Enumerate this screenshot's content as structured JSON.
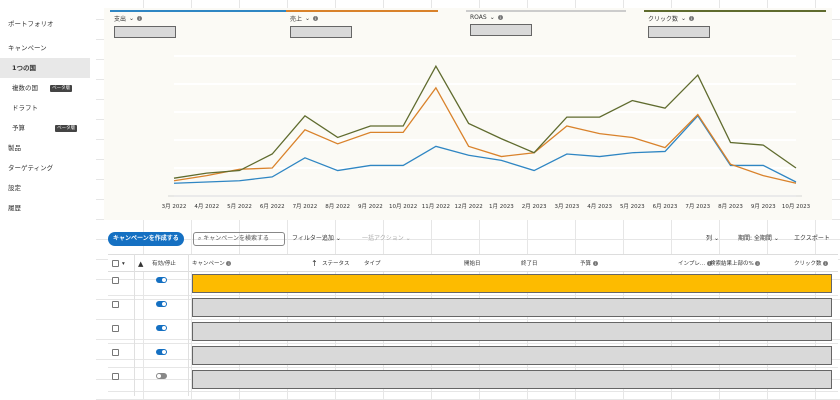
{
  "sidebar": {
    "portfolio": "ポートフォリオ",
    "campaigns": "キャンペーン",
    "items": [
      {
        "label": "1つの国"
      },
      {
        "label": "複数の国",
        "badge": "ベータ版"
      },
      {
        "label": "ドラフト"
      },
      {
        "label": "予算",
        "badge": "ベータ版"
      }
    ],
    "products": "製品",
    "targeting": "ターゲティング",
    "settings": "設定",
    "history": "履歴"
  },
  "metrics": [
    {
      "label": "支出",
      "color": "#2f86c3"
    },
    {
      "label": "売上",
      "color": "#d9822b"
    },
    {
      "label": "ROAS",
      "color": "#cccccc"
    },
    {
      "label": "クリック数",
      "color": "#5f6b2e"
    }
  ],
  "chart_data": {
    "type": "line",
    "categories": [
      "3月 2022",
      "4月 2022",
      "5月 2022",
      "6月 2022",
      "7月 2022",
      "8月 2022",
      "9月 2022",
      "10月 2022",
      "11月 2022",
      "12月 2022",
      "1月 2023",
      "2月 2023",
      "3月 2023",
      "4月 2023",
      "5月 2023",
      "6月 2023",
      "7月 2023",
      "8月 2023",
      "9月 2023",
      "10月 2023"
    ],
    "series": [
      {
        "name": "支出",
        "color": "#2f86c3",
        "values": [
          10,
          11,
          12,
          15,
          30,
          20,
          24,
          24,
          39,
          32,
          28,
          20,
          33,
          31,
          34,
          35,
          63,
          24,
          24,
          11
        ]
      },
      {
        "name": "売上",
        "color": "#d9822b",
        "values": [
          12,
          16,
          21,
          22,
          52,
          41,
          50,
          50,
          85,
          39,
          31,
          34,
          55,
          49,
          46,
          38,
          64,
          25,
          16,
          10
        ]
      },
      {
        "name": "クリック数",
        "color": "#5f6b2e",
        "values": [
          14,
          18,
          20,
          33,
          63,
          46,
          55,
          55,
          102,
          57,
          45,
          34,
          62,
          62,
          75,
          69,
          95,
          42,
          40,
          22
        ]
      }
    ],
    "ylim": [
      0,
      110
    ],
    "grid": true
  },
  "toolbar": {
    "create_label": "キャンペーンを作成する",
    "search_placeholder": "キャンペーンを検索する",
    "filter_label": "フィルター追加",
    "bulk_label": "一括アクション",
    "columns_label": "列",
    "period_label": "期間: 全期間",
    "export_label": "エクスポート"
  },
  "table": {
    "headers": {
      "active": "有効/停止",
      "campaign": "キャンペーン",
      "status": "ステータス",
      "type": "タイプ",
      "start": "開始日",
      "end": "終了日",
      "budget": "予算",
      "impressions": "インプレ...",
      "top_share": "検索結果上部の%",
      "clicks": "クリック数"
    },
    "rows": [
      {
        "enabled": true,
        "highlight": true
      },
      {
        "enabled": true,
        "highlight": false
      },
      {
        "enabled": true,
        "highlight": false
      },
      {
        "enabled": true,
        "highlight": false
      },
      {
        "enabled": false,
        "highlight": false
      }
    ]
  }
}
